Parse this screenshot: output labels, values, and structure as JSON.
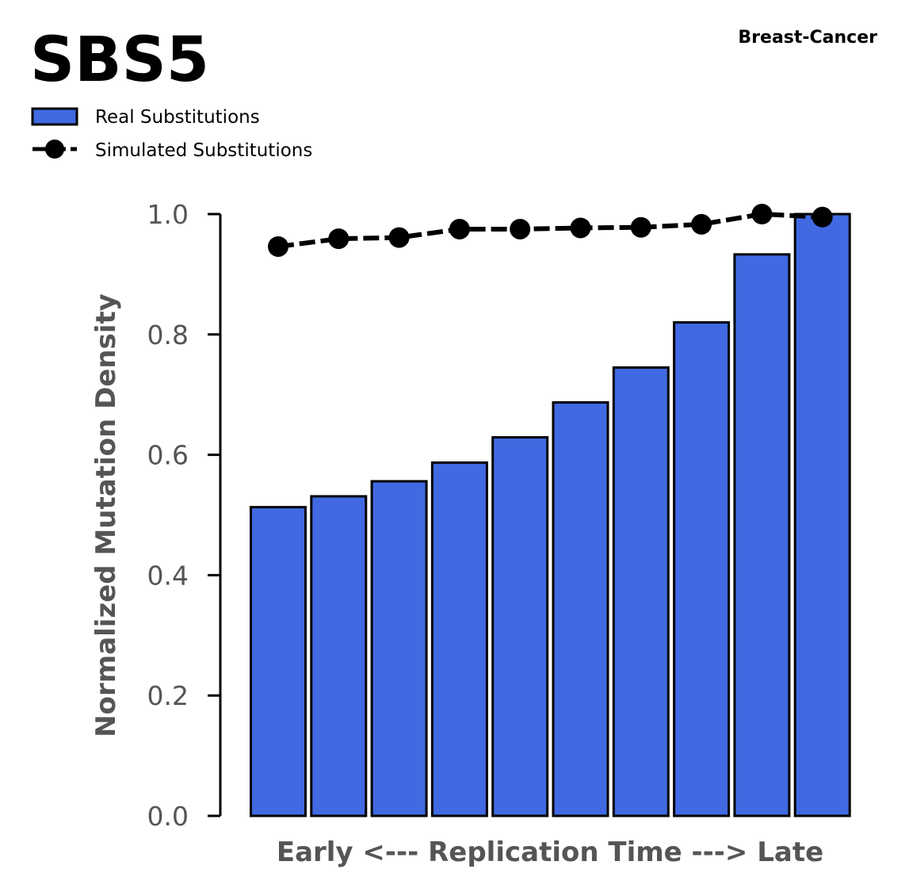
{
  "chart_data": {
    "type": "bar",
    "title": "SBS5",
    "subtitle": "Breast-Cancer",
    "xlabel": "Early <--- Replication Time ---> Late",
    "ylabel": "Normalized Mutation Density",
    "ylim": [
      0,
      1
    ],
    "yticks": [
      "0.0",
      "0.2",
      "0.4",
      "0.6",
      "0.8",
      "1.0"
    ],
    "x": [
      1,
      2,
      3,
      4,
      5,
      6,
      7,
      8,
      9,
      10
    ],
    "legend_position": "top-left",
    "grid": false,
    "series": [
      {
        "name": "Real Substitutions",
        "kind": "bar",
        "color": "#4169e1",
        "values": [
          0.513,
          0.531,
          0.556,
          0.587,
          0.629,
          0.687,
          0.745,
          0.82,
          0.933,
          1.0
        ]
      },
      {
        "name": "Simulated Substitutions",
        "kind": "line",
        "color": "#000000",
        "values": [
          0.946,
          0.959,
          0.961,
          0.975,
          0.975,
          0.977,
          0.978,
          0.983,
          1.0,
          0.995
        ]
      }
    ]
  }
}
